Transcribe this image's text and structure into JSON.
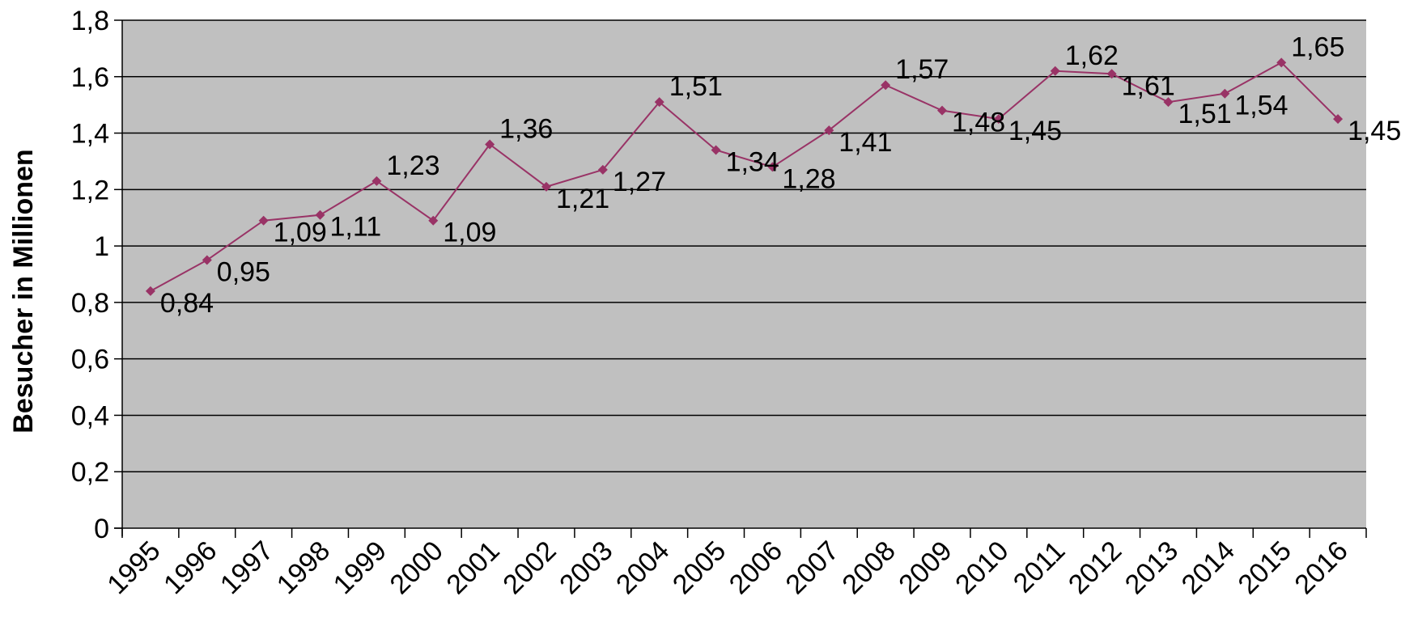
{
  "chart_data": {
    "type": "line",
    "title": "",
    "xlabel": "",
    "ylabel": "Besucher in Millionen",
    "ylim": [
      0,
      1.8
    ],
    "y_ticks": [
      "0",
      "0,2",
      "0,4",
      "0,6",
      "0,8",
      "1",
      "1,2",
      "1,4",
      "1,6",
      "1,8"
    ],
    "grid": "horizontal",
    "legend": "none",
    "categories": [
      "1995",
      "1996",
      "1997",
      "1998",
      "1999",
      "2000",
      "2001",
      "2002",
      "2003",
      "2004",
      "2005",
      "2006",
      "2007",
      "2008",
      "2009",
      "2010",
      "2011",
      "2012",
      "2013",
      "2014",
      "2015",
      "2016"
    ],
    "series": [
      {
        "values": [
          0.84,
          0.95,
          1.09,
          1.11,
          1.23,
          1.09,
          1.36,
          1.21,
          1.27,
          1.51,
          1.34,
          1.28,
          1.41,
          1.57,
          1.48,
          1.45,
          1.62,
          1.61,
          1.51,
          1.54,
          1.65,
          1.45
        ],
        "labels": [
          "0,84",
          "0,95",
          "1,09",
          "1,11",
          "1,23",
          "1,09",
          "1,36",
          "1,21",
          "1,27",
          "1,51",
          "1,34",
          "1,28",
          "1,41",
          "1,57",
          "1,48",
          "1,45",
          "1,62",
          "1,61",
          "1,51",
          "1,54",
          "1,65",
          "1,45"
        ],
        "color": "#993366"
      }
    ],
    "colors": {
      "plot_background": "#c0c0c0",
      "gridline": "#000000",
      "axis": "#000000"
    }
  }
}
